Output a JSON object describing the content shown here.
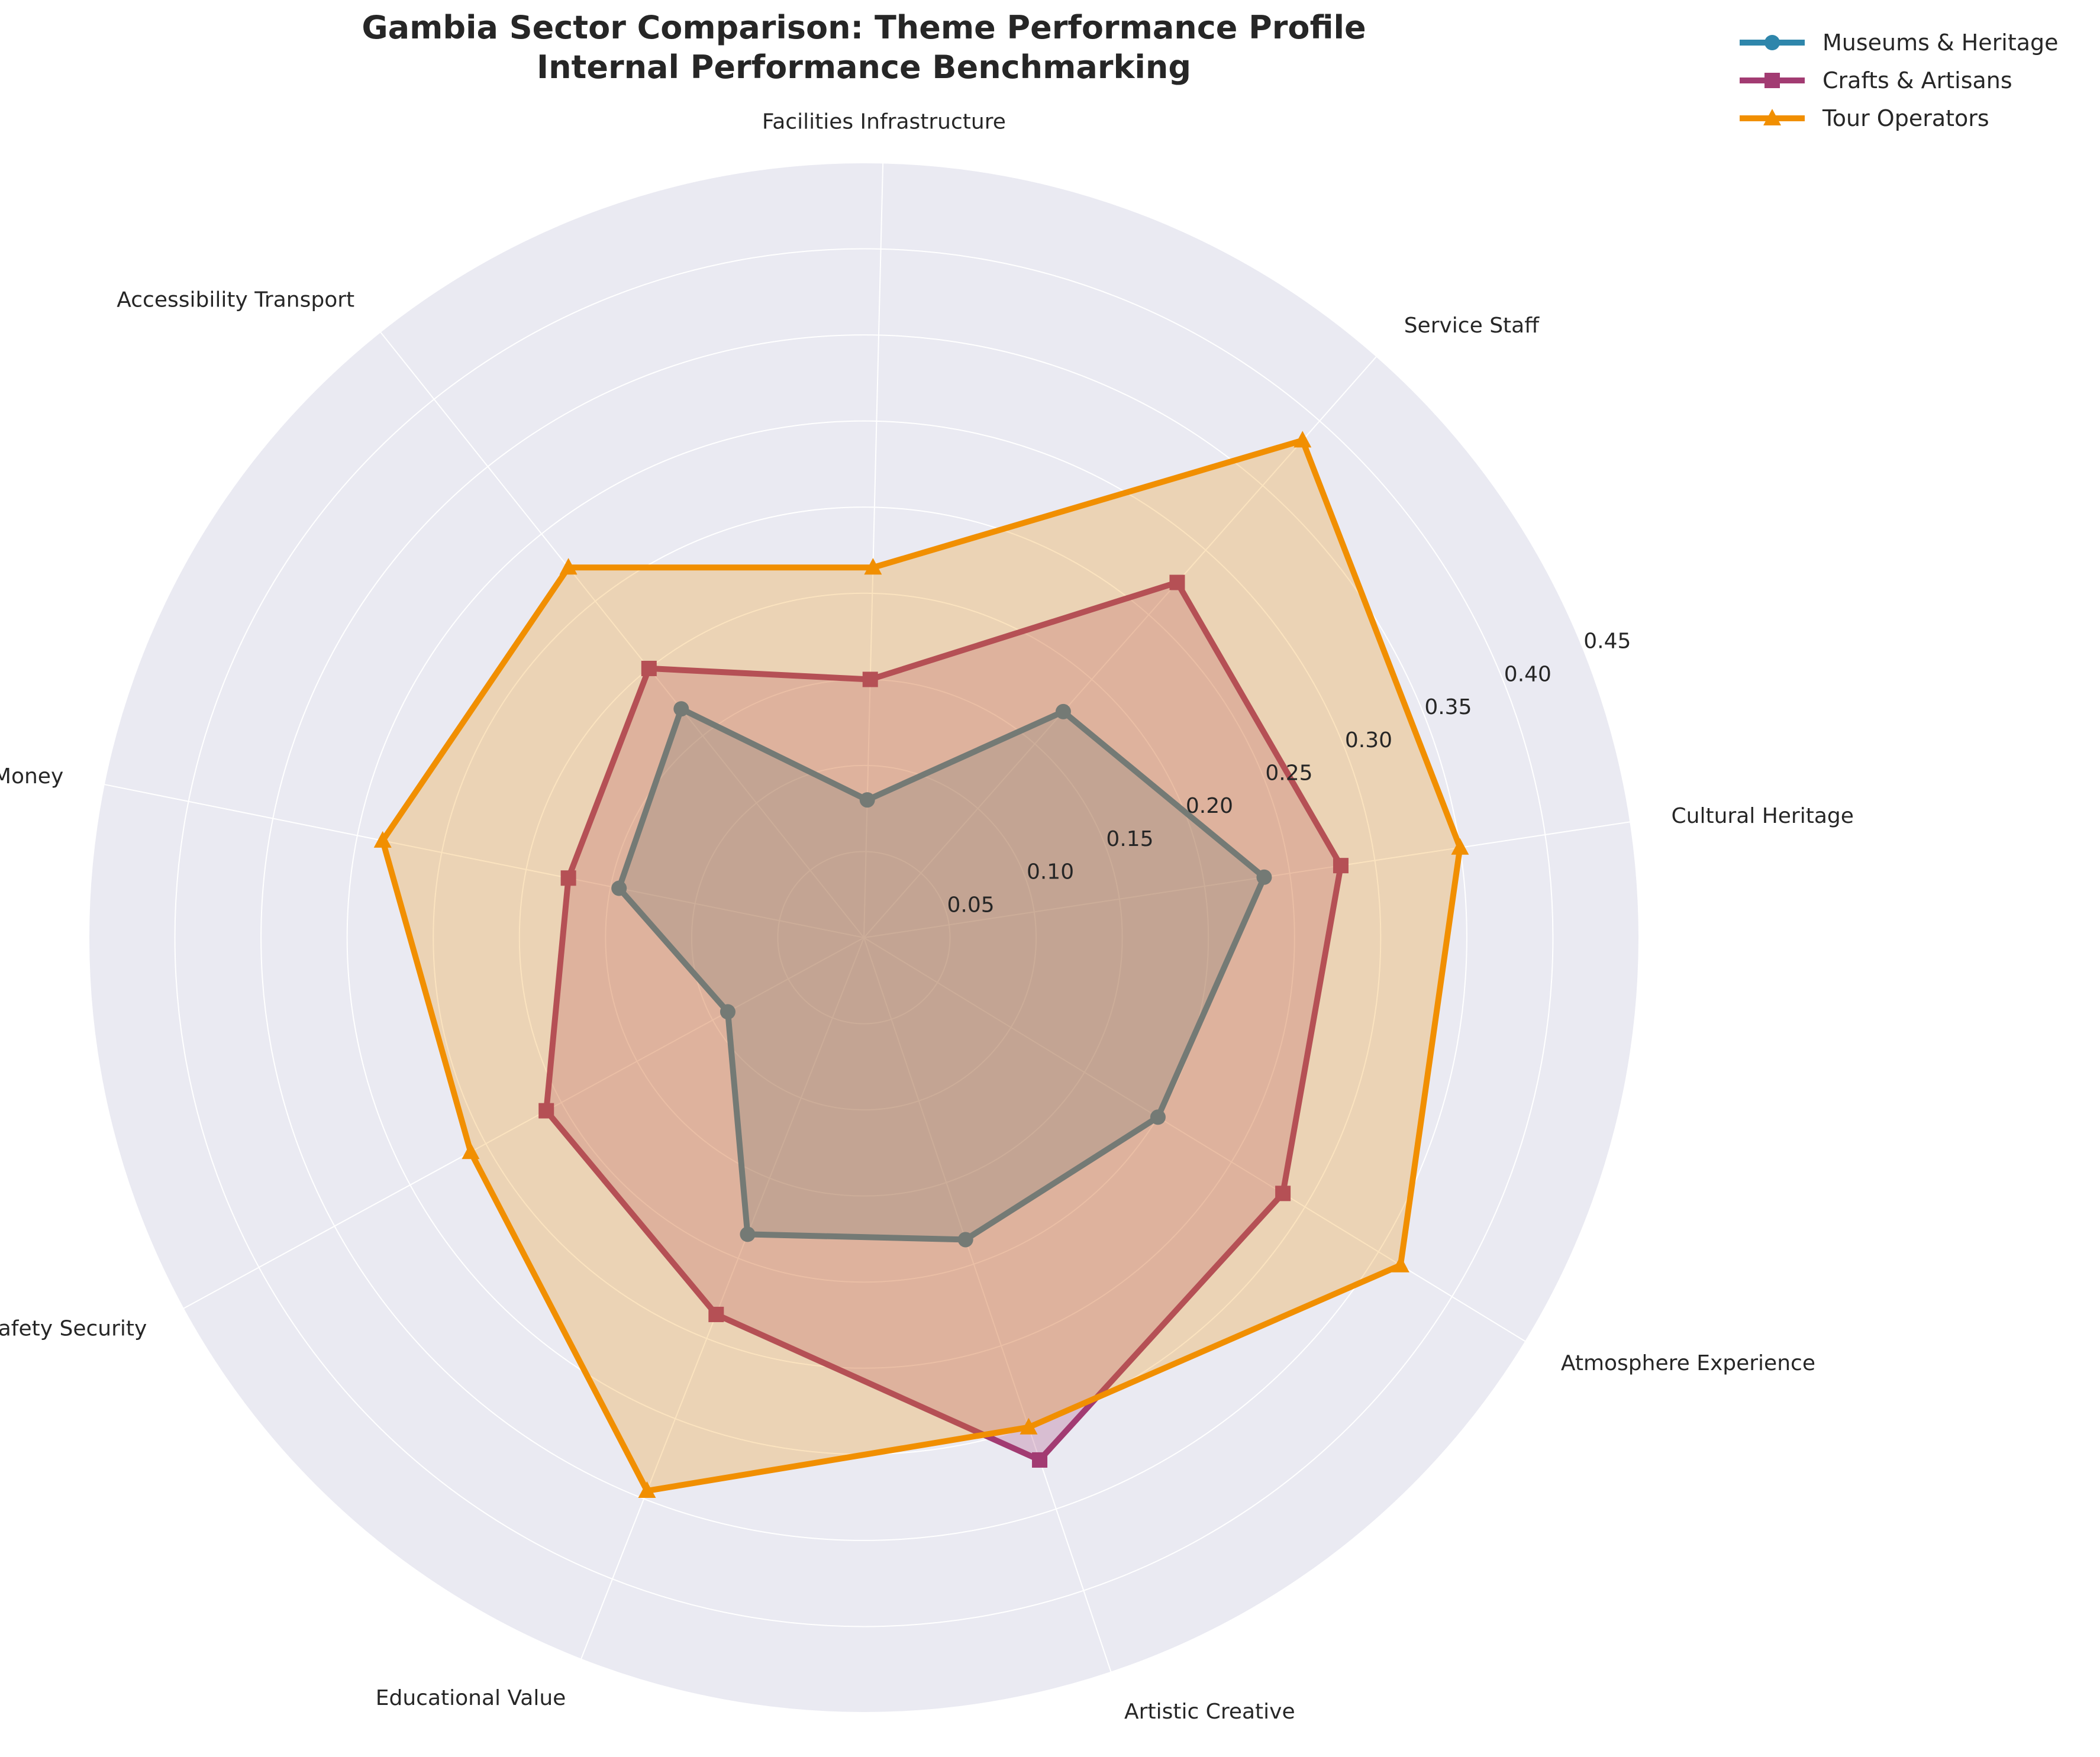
{
  "chart_data": {
    "type": "radar",
    "title": "Gambia Sector Comparison: Theme Performance Profile",
    "subtitle": "Internal Performance Benchmarking",
    "categories": [
      "Cultural Heritage",
      "Service Staff",
      "Facilities Infrastructure",
      "Accessibility Transport",
      "Value Money",
      "Safety Security",
      "Educational Value",
      "Artistic Creative",
      "Atmosphere Experience"
    ],
    "radial_ticks": [
      "0.05",
      "0.10",
      "0.15",
      "0.20",
      "0.25",
      "0.30",
      "0.35",
      "0.40",
      "0.45"
    ],
    "rlim": [
      0,
      0.45
    ],
    "series": [
      {
        "name": "Museums & Heritage",
        "color": "#2e86ab",
        "marker": "circle",
        "values": [
          0.235,
          0.175,
          0.08,
          0.17,
          0.145,
          0.09,
          0.185,
          0.185,
          0.2
        ]
      },
      {
        "name": "Crafts & Artisans",
        "color": "#a23b72",
        "marker": "square",
        "values": [
          0.28,
          0.275,
          0.15,
          0.2,
          0.175,
          0.21,
          0.235,
          0.32,
          0.285
        ]
      },
      {
        "name": "Tour Operators",
        "color": "#f18f01",
        "marker": "triangle",
        "values": [
          0.35,
          0.385,
          0.215,
          0.275,
          0.285,
          0.26,
          0.345,
          0.3,
          0.365
        ]
      }
    ],
    "grid": true,
    "legend_position": "top-right"
  }
}
